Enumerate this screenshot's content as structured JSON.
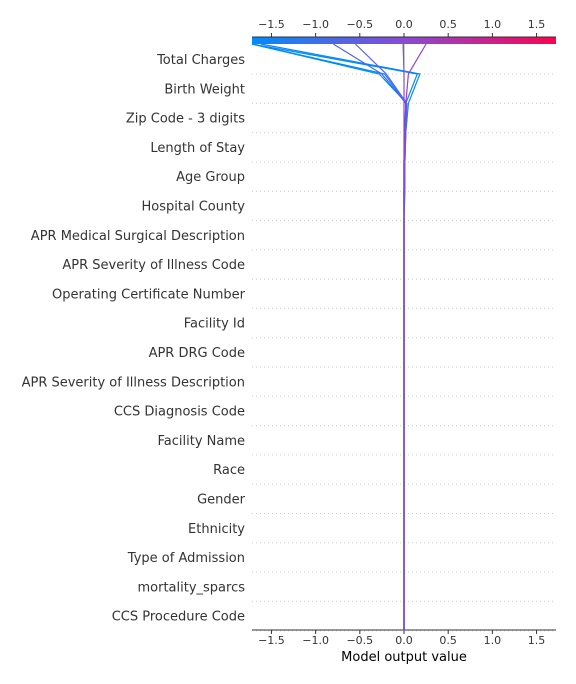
{
  "chart_data": {
    "type": "line",
    "xlabel": "Model output value",
    "xlim": [
      -1.72,
      1.72
    ],
    "x_ticks": [
      "−1.5",
      "−1.0",
      "−0.5",
      "0.0",
      "0.5",
      "1.0",
      "1.5"
    ],
    "x_tick_values": [
      -1.5,
      -1.0,
      -0.5,
      0.0,
      0.5,
      1.0,
      1.5
    ],
    "features": [
      "Total Charges",
      "Birth Weight",
      "Zip Code - 3 digits",
      "Length of Stay",
      "Age Group",
      "Hospital County",
      "APR Medical Surgical Description",
      "APR Severity of Illness Code",
      "Operating Certificate Number",
      "Facility Id",
      "APR DRG Code",
      "APR Severity of Illness Description",
      "CCS Diagnosis Code",
      "Facility Name",
      "Race",
      "Gender",
      "Ethnicity",
      "Type of Admission",
      "mortality_sparcs",
      "CCS Procedure Code"
    ],
    "base_value": 0.0,
    "colormap": {
      "low": "#008bfb",
      "high": "#ff0052"
    },
    "grid": true,
    "series": [
      {
        "values": [
          -1.72,
          -0.22,
          0.02,
          0.01,
          0.0,
          0.0,
          0.0,
          0.0,
          0.0,
          0.0,
          0.0,
          0.0,
          0.0,
          0.0,
          0.0,
          0.0,
          0.0,
          0.0,
          0.0,
          0.0,
          0.0
        ]
      },
      {
        "values": [
          -1.72,
          -0.28,
          0.03,
          0.02,
          0.01,
          0.01,
          0.0,
          0.0,
          0.0,
          0.0,
          0.0,
          0.0,
          0.0,
          0.0,
          0.0,
          0.0,
          0.0,
          0.0,
          0.0,
          0.0,
          0.0
        ]
      },
      {
        "values": [
          -1.72,
          0.15,
          0.02,
          0.01,
          0.01,
          0.0,
          0.0,
          0.0,
          0.0,
          0.0,
          0.0,
          0.0,
          0.0,
          0.0,
          0.0,
          0.0,
          0.0,
          0.0,
          0.0,
          0.0,
          0.0
        ]
      },
      {
        "values": [
          -1.62,
          0.18,
          0.05,
          0.02,
          0.0,
          0.0,
          0.0,
          0.0,
          0.0,
          0.0,
          0.0,
          0.0,
          0.0,
          0.0,
          0.0,
          0.0,
          0.0,
          0.0,
          0.0,
          0.0,
          0.0
        ]
      },
      {
        "values": [
          -0.8,
          -0.25,
          0.02,
          0.01,
          0.0,
          0.0,
          0.0,
          0.0,
          0.0,
          0.0,
          0.0,
          0.0,
          0.0,
          0.0,
          0.0,
          0.0,
          0.0,
          0.0,
          0.0,
          0.0,
          0.0
        ]
      },
      {
        "values": [
          -0.55,
          -0.2,
          0.03,
          0.02,
          0.01,
          0.0,
          0.0,
          0.0,
          0.0,
          0.0,
          0.0,
          0.0,
          0.0,
          0.0,
          0.0,
          0.0,
          0.0,
          0.0,
          0.0,
          0.0,
          0.0
        ]
      },
      {
        "values": [
          -0.01,
          0.0,
          0.0,
          0.0,
          0.0,
          0.0,
          0.0,
          0.0,
          0.0,
          0.0,
          0.0,
          0.0,
          0.0,
          0.0,
          0.0,
          0.0,
          0.0,
          0.0,
          0.0,
          0.0,
          0.0
        ]
      },
      {
        "values": [
          0.25,
          0.05,
          0.02,
          0.01,
          0.0,
          0.0,
          0.0,
          0.0,
          0.0,
          0.0,
          0.0,
          0.0,
          0.0,
          0.0,
          0.0,
          0.0,
          0.0,
          0.0,
          0.0,
          0.0,
          0.0
        ]
      }
    ]
  }
}
